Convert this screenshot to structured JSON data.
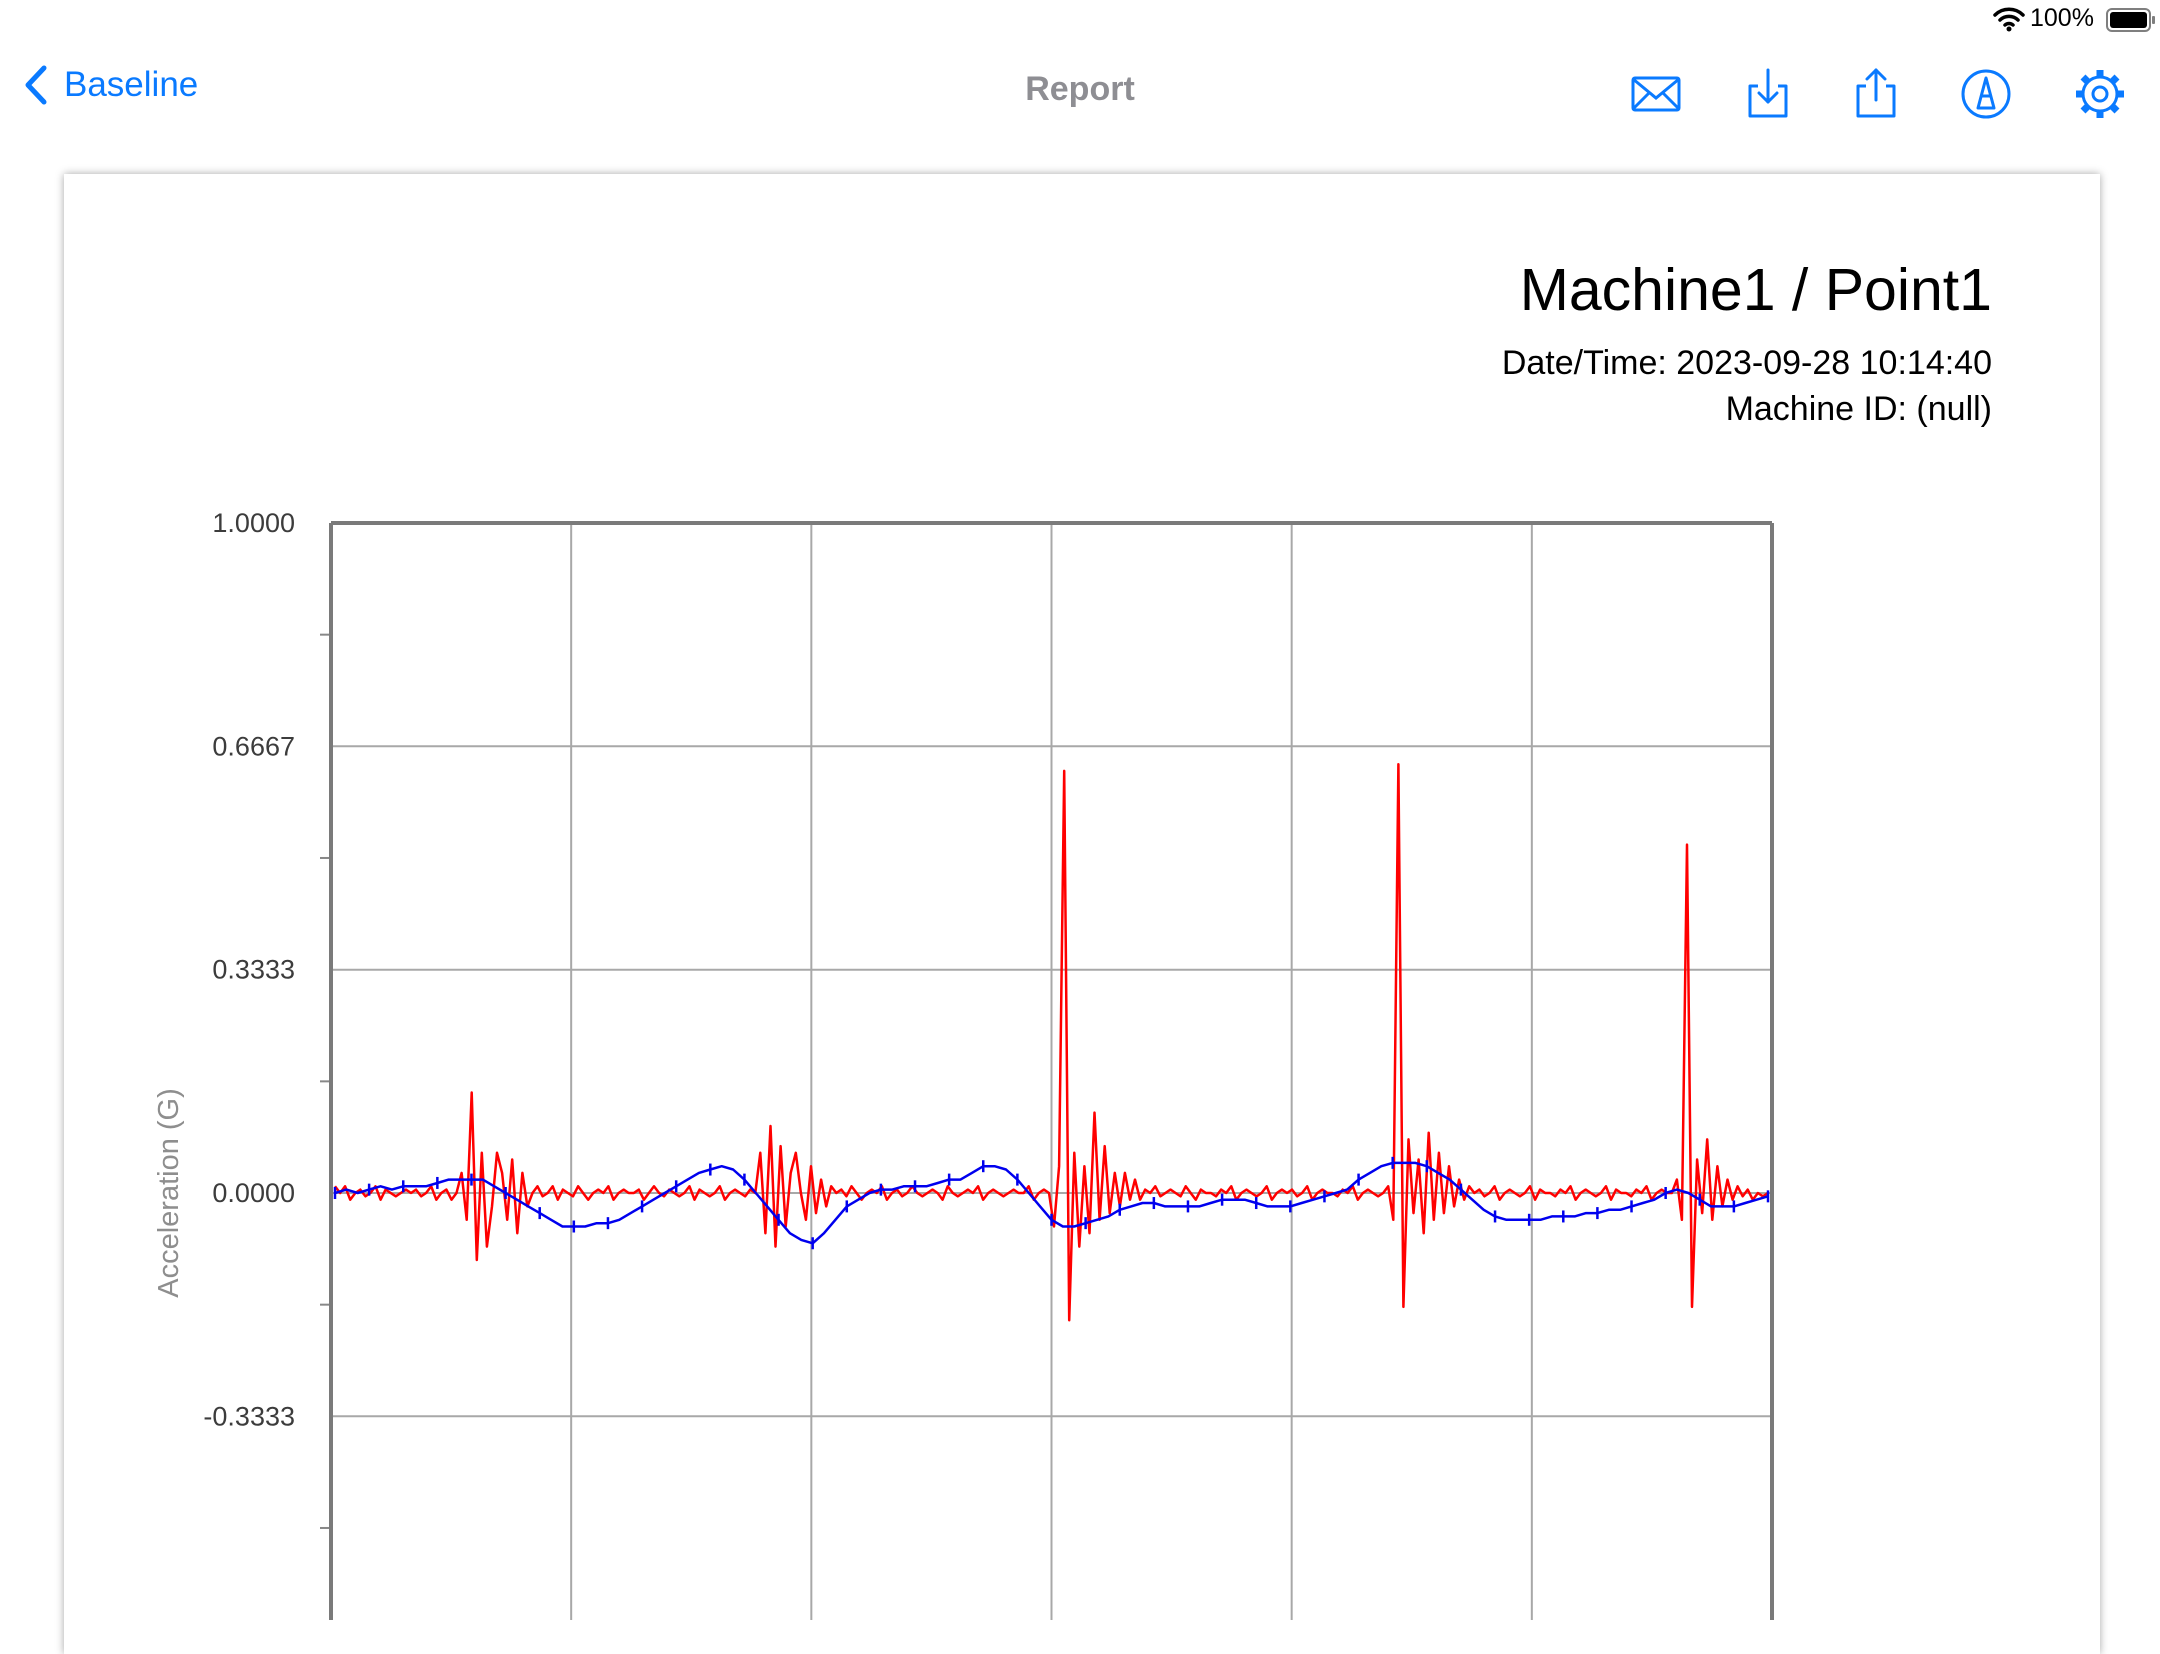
{
  "status_bar": {
    "battery_percent": "100%"
  },
  "nav": {
    "back_label": "Baseline",
    "title": "Report"
  },
  "toolbar": {
    "icons": [
      "envelope-icon",
      "download-icon",
      "share-icon",
      "markup-icon",
      "gear-icon"
    ]
  },
  "report": {
    "title": "Machine1 / Point1",
    "datetime": "Date/Time: 2023-09-28 10:14:40",
    "machine_id": "Machine ID: (null)"
  },
  "colors": {
    "accent": "#0a7aff",
    "series_red": "#ff0000",
    "series_blue": "#0000ee",
    "grid": "#9a9a9a"
  },
  "chart_data": {
    "type": "line",
    "ylabel": "Acceleration (G)",
    "yticks": [
      "1.0000",
      "0.6667",
      "0.3333",
      "0.0000",
      "-0.3333"
    ],
    "ylim": [
      -0.6667,
      1.0
    ],
    "x_gridlines": 6,
    "grid": true,
    "series": [
      {
        "color": "#ff0000",
        "values": [
          0.01,
          0.0,
          0.01,
          -0.01,
          0.0,
          0.005,
          -0.005,
          0.0,
          0.01,
          -0.01,
          0.005,
          0.0,
          -0.005,
          0.0,
          0.005,
          0.0,
          0.005,
          -0.005,
          0.0,
          0.01,
          -0.01,
          0.0,
          0.005,
          -0.01,
          0.0,
          0.03,
          -0.04,
          0.15,
          -0.1,
          0.06,
          -0.08,
          -0.02,
          0.06,
          0.03,
          -0.04,
          0.05,
          -0.06,
          0.03,
          -0.02,
          0.0,
          0.01,
          -0.005,
          0.0,
          0.01,
          -0.01,
          0.005,
          0.0,
          -0.005,
          0.01,
          0.0,
          -0.01,
          0.0,
          0.005,
          0.0,
          0.01,
          -0.01,
          0.0,
          0.005,
          0.0,
          0.0,
          0.005,
          -0.01,
          0.0,
          0.01,
          0.0,
          -0.005,
          0.005,
          0.0,
          -0.005,
          0.0,
          0.01,
          -0.01,
          0.005,
          0.0,
          -0.005,
          0.0,
          0.01,
          -0.01,
          0.0,
          0.005,
          0.0,
          -0.005,
          0.005,
          0.0,
          0.06,
          -0.06,
          0.1,
          -0.08,
          0.07,
          -0.05,
          0.03,
          0.06,
          0.0,
          -0.04,
          0.04,
          -0.03,
          0.02,
          -0.02,
          0.01,
          0.0,
          0.005,
          -0.005,
          0.01,
          0.0,
          -0.01,
          0.0,
          0.005,
          0.0,
          0.01,
          -0.01,
          0.0,
          0.005,
          -0.005,
          0.0,
          0.01,
          0.0,
          -0.005,
          0.0,
          0.005,
          0.0,
          -0.01,
          0.01,
          0.0,
          -0.005,
          0.0,
          0.005,
          0.0,
          0.01,
          -0.01,
          0.0,
          0.005,
          0.0,
          -0.005,
          0.0,
          0.005,
          0.0,
          0.0,
          0.01,
          -0.01,
          0.0,
          0.005,
          0.0,
          -0.05,
          0.04,
          0.63,
          -0.19,
          0.06,
          -0.08,
          0.04,
          -0.06,
          0.12,
          -0.04,
          0.07,
          -0.03,
          0.03,
          -0.02,
          0.03,
          -0.01,
          0.02,
          -0.01,
          0.005,
          0.0,
          0.01,
          -0.005,
          0.0,
          0.005,
          0.0,
          -0.005,
          0.01,
          0.0,
          -0.01,
          0.005,
          0.0,
          0.0,
          -0.005,
          0.005,
          0.0,
          0.01,
          -0.01,
          0.0,
          0.005,
          0.0,
          -0.005,
          0.0,
          0.01,
          -0.01,
          0.0,
          0.005,
          0.0,
          0.005,
          -0.005,
          0.0,
          0.01,
          -0.01,
          0.0,
          0.005,
          0.0,
          0.0,
          -0.005,
          0.005,
          0.0,
          0.01,
          -0.01,
          0.0,
          0.005,
          0.0,
          -0.005,
          0.0,
          0.01,
          -0.04,
          0.64,
          -0.17,
          0.08,
          -0.03,
          0.05,
          -0.06,
          0.09,
          -0.04,
          0.06,
          -0.03,
          0.04,
          -0.02,
          0.02,
          -0.01,
          0.01,
          0.0,
          0.005,
          -0.005,
          0.0,
          0.01,
          -0.01,
          0.0,
          0.005,
          0.0,
          -0.005,
          0.0,
          0.01,
          -0.01,
          0.005,
          0.0,
          0.0,
          -0.005,
          0.005,
          0.0,
          0.01,
          -0.01,
          0.0,
          0.005,
          0.0,
          -0.005,
          0.0,
          0.01,
          -0.01,
          0.005,
          0.0,
          0.0,
          -0.005,
          0.005,
          0.0,
          0.01,
          -0.01,
          0.0,
          0.005,
          0.0,
          0.0,
          0.02,
          -0.04,
          0.52,
          -0.17,
          0.05,
          -0.03,
          0.08,
          -0.04,
          0.04,
          -0.02,
          0.02,
          -0.01,
          0.01,
          -0.005,
          0.005,
          -0.01,
          0.0,
          -0.005,
          0.0
        ]
      },
      {
        "color": "#0000ee",
        "values": [
          0.0,
          0.005,
          0.0,
          0.005,
          0.01,
          0.005,
          0.01,
          0.01,
          0.01,
          0.015,
          0.02,
          0.02,
          0.02,
          0.02,
          0.01,
          0.0,
          -0.01,
          -0.02,
          -0.03,
          -0.04,
          -0.05,
          -0.05,
          -0.05,
          -0.045,
          -0.045,
          -0.04,
          -0.03,
          -0.02,
          -0.01,
          0.0,
          0.01,
          0.02,
          0.03,
          0.035,
          0.04,
          0.035,
          0.02,
          0.0,
          -0.02,
          -0.04,
          -0.06,
          -0.07,
          -0.075,
          -0.06,
          -0.04,
          -0.02,
          -0.01,
          0.0,
          0.005,
          0.005,
          0.01,
          0.01,
          0.01,
          0.015,
          0.02,
          0.02,
          0.03,
          0.04,
          0.04,
          0.035,
          0.02,
          0.0,
          -0.02,
          -0.04,
          -0.05,
          -0.05,
          -0.045,
          -0.04,
          -0.035,
          -0.025,
          -0.02,
          -0.015,
          -0.015,
          -0.02,
          -0.02,
          -0.02,
          -0.02,
          -0.015,
          -0.01,
          -0.01,
          -0.01,
          -0.015,
          -0.02,
          -0.02,
          -0.02,
          -0.015,
          -0.01,
          -0.005,
          0.0,
          0.005,
          0.02,
          0.03,
          0.04,
          0.045,
          0.045,
          0.045,
          0.04,
          0.03,
          0.02,
          0.005,
          -0.01,
          -0.025,
          -0.035,
          -0.04,
          -0.04,
          -0.04,
          -0.04,
          -0.035,
          -0.035,
          -0.035,
          -0.03,
          -0.03,
          -0.025,
          -0.025,
          -0.02,
          -0.015,
          -0.01,
          0.0,
          0.005,
          0.0,
          -0.01,
          -0.02,
          -0.02,
          -0.02,
          -0.015,
          -0.01,
          -0.005
        ]
      }
    ]
  }
}
